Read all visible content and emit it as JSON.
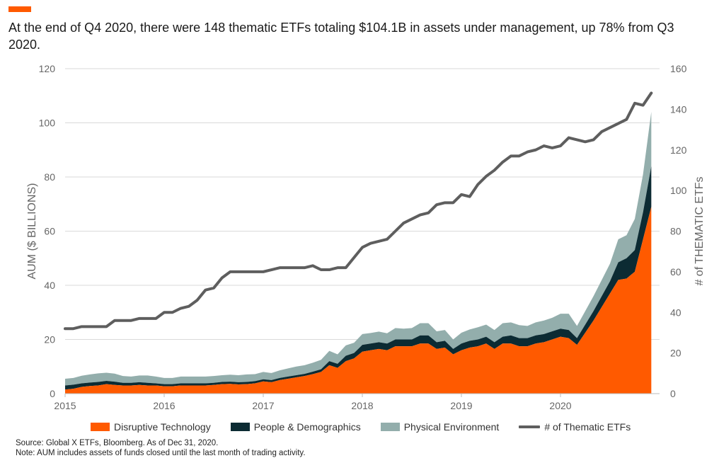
{
  "headline": "At the end of Q4 2020, there were 148 thematic ETFs totaling $104.1B in assets under management, up 78% from Q3 2020.",
  "footnotes": {
    "source": "Source: Global X ETFs, Bloomberg. As of Dec 31, 2020.",
    "note": "Note: AUM includes assets of funds closed until the last month of trading activity."
  },
  "colors": {
    "accent": "#FF5A00",
    "disruptive": "#FF5A00",
    "people": "#0C2B33",
    "physical": "#93AEAC",
    "etf_line": "#5E5E5E",
    "grid": "#DADADA",
    "axis_text": "#666666"
  },
  "chart_data": {
    "type": "area",
    "ylabel": "AUM ($ BILLIONS)",
    "y2label": "# of THEMATIC ETFs",
    "ylim": [
      0,
      120
    ],
    "y2lim": [
      0,
      160
    ],
    "yticks": [
      0,
      20,
      40,
      60,
      80,
      100,
      120
    ],
    "y2ticks": [
      0,
      20,
      40,
      60,
      80,
      100,
      120,
      140,
      160
    ],
    "xlim": [
      2015,
      2021
    ],
    "xticks": [
      "2015",
      "2016",
      "2017",
      "2018",
      "2019",
      "2020"
    ],
    "grid": true,
    "legend_position": "bottom",
    "x": [
      "2015-01",
      "2015-02",
      "2015-03",
      "2015-04",
      "2015-05",
      "2015-06",
      "2015-07",
      "2015-08",
      "2015-09",
      "2015-10",
      "2015-11",
      "2015-12",
      "2016-01",
      "2016-02",
      "2016-03",
      "2016-04",
      "2016-05",
      "2016-06",
      "2016-07",
      "2016-08",
      "2016-09",
      "2016-10",
      "2016-11",
      "2016-12",
      "2017-01",
      "2017-02",
      "2017-03",
      "2017-04",
      "2017-05",
      "2017-06",
      "2017-07",
      "2017-08",
      "2017-09",
      "2017-10",
      "2017-11",
      "2017-12",
      "2018-01",
      "2018-02",
      "2018-03",
      "2018-04",
      "2018-05",
      "2018-06",
      "2018-07",
      "2018-08",
      "2018-09",
      "2018-10",
      "2018-11",
      "2018-12",
      "2019-01",
      "2019-02",
      "2019-03",
      "2019-04",
      "2019-05",
      "2019-06",
      "2019-07",
      "2019-08",
      "2019-09",
      "2019-10",
      "2019-11",
      "2019-12",
      "2020-01",
      "2020-02",
      "2020-03",
      "2020-04",
      "2020-05",
      "2020-06",
      "2020-07",
      "2020-08",
      "2020-09",
      "2020-10",
      "2020-11",
      "2020-12"
    ],
    "series": [
      {
        "name": "Disruptive Technology",
        "values": [
          1.5,
          1.8,
          2.5,
          2.8,
          3.0,
          3.5,
          3.2,
          3.0,
          3.0,
          3.2,
          3.0,
          3.0,
          2.7,
          2.7,
          3.0,
          3.0,
          3.0,
          3.0,
          3.2,
          3.5,
          3.6,
          3.4,
          3.5,
          3.8,
          4.5,
          4.2,
          5.0,
          5.5,
          6.0,
          6.5,
          7.2,
          8.0,
          10.5,
          9.5,
          12.0,
          13.0,
          15.5,
          16.0,
          16.5,
          16.0,
          17.5,
          17.5,
          17.5,
          18.5,
          18.5,
          16.5,
          17.0,
          14.5,
          16.0,
          17.0,
          17.5,
          18.5,
          16.5,
          18.5,
          18.5,
          17.5,
          17.5,
          18.5,
          19.0,
          20.0,
          21.0,
          20.5,
          18.0,
          22.5,
          27.0,
          32.0,
          37.0,
          42.0,
          42.5,
          45.0,
          57.0,
          69.0
        ]
      },
      {
        "name": "People & Demographics",
        "values": [
          1.5,
          1.5,
          1.3,
          1.3,
          1.3,
          1.2,
          1.2,
          1.0,
          1.0,
          1.0,
          1.0,
          0.8,
          0.8,
          0.8,
          0.8,
          0.8,
          0.8,
          0.8,
          0.8,
          0.8,
          0.8,
          0.8,
          0.8,
          0.8,
          0.8,
          0.8,
          0.8,
          0.8,
          0.8,
          0.8,
          0.9,
          1.0,
          1.5,
          1.5,
          2.0,
          2.0,
          2.5,
          2.5,
          2.5,
          2.5,
          2.5,
          2.5,
          2.5,
          3.0,
          3.0,
          2.5,
          2.5,
          2.0,
          2.5,
          2.5,
          2.5,
          2.5,
          2.5,
          2.5,
          3.0,
          3.0,
          3.0,
          3.0,
          3.0,
          3.0,
          3.0,
          3.0,
          2.5,
          3.0,
          3.5,
          4.0,
          4.5,
          6.5,
          7.5,
          8.0,
          10.0,
          15.0
        ]
      },
      {
        "name": "Physical Environment",
        "values": [
          2.5,
          2.5,
          2.8,
          3.0,
          3.2,
          3.0,
          3.0,
          2.5,
          2.3,
          2.5,
          2.7,
          2.5,
          2.3,
          2.3,
          2.5,
          2.5,
          2.5,
          2.5,
          2.5,
          2.5,
          2.6,
          2.6,
          2.8,
          2.6,
          2.7,
          2.6,
          2.8,
          3.0,
          3.2,
          3.2,
          3.3,
          3.5,
          3.8,
          3.5,
          3.8,
          3.8,
          4.0,
          3.9,
          3.9,
          3.8,
          4.2,
          4.0,
          4.2,
          4.5,
          4.5,
          4.0,
          4.0,
          3.5,
          4.0,
          4.2,
          4.5,
          4.5,
          4.5,
          5.0,
          4.8,
          4.8,
          4.5,
          4.8,
          5.0,
          5.0,
          5.5,
          6.0,
          4.5,
          5.0,
          5.5,
          6.0,
          6.5,
          8.5,
          8.5,
          11.5,
          14.0,
          20.1
        ]
      },
      {
        "name": "# of Thematic ETFs",
        "axis": "right",
        "values": [
          32,
          32,
          33,
          33,
          33,
          33,
          36,
          36,
          36,
          37,
          37,
          37,
          40,
          40,
          42,
          43,
          46,
          51,
          52,
          57,
          60,
          60,
          60,
          60,
          60,
          61,
          62,
          62,
          62,
          62,
          63,
          61,
          61,
          62,
          62,
          67,
          72,
          74,
          75,
          76,
          80,
          84,
          86,
          88,
          89,
          93,
          94,
          94,
          98,
          97,
          103,
          107,
          110,
          114,
          117,
          117,
          119,
          120,
          122,
          121,
          122,
          126,
          125,
          124,
          125,
          129,
          131,
          133,
          135,
          143,
          142,
          148
        ]
      }
    ]
  }
}
